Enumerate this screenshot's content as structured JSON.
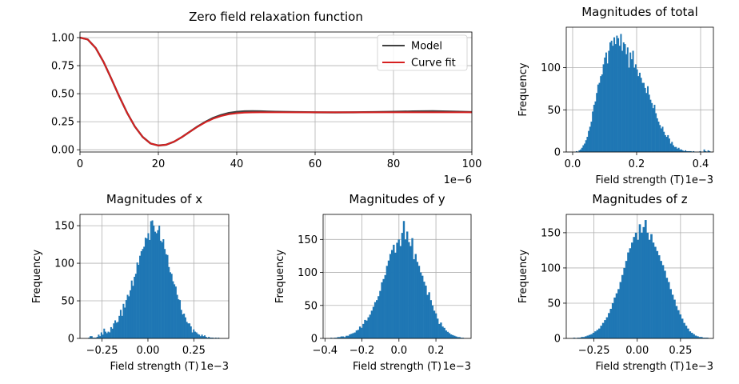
{
  "chart_data": [
    {
      "id": "relax",
      "type": "line",
      "title": "Zero field relaxation function",
      "xlabel": "",
      "ylabel": "",
      "xlim": [
        0,
        100
      ],
      "ylim": [
        -0.02,
        1.05
      ],
      "x_ticks": [
        0,
        20,
        40,
        60,
        80,
        100
      ],
      "x_tick_labels": [
        "0",
        "20",
        "40",
        "60",
        "80",
        "100"
      ],
      "y_ticks": [
        0.0,
        0.25,
        0.5,
        0.75,
        1.0
      ],
      "y_tick_labels": [
        "0.00",
        "0.25",
        "0.50",
        "0.75",
        "1.00"
      ],
      "x_offset_label": "1e−6",
      "grid": true,
      "legend": "top-right",
      "series": [
        {
          "name": "Model",
          "color": "#404040",
          "x": [
            0,
            2,
            4,
            6,
            8,
            10,
            12,
            14,
            16,
            18,
            20,
            22,
            24,
            26,
            28,
            30,
            32,
            34,
            36,
            38,
            40,
            42,
            44,
            46,
            48,
            50,
            55,
            60,
            65,
            70,
            75,
            80,
            85,
            90,
            95,
            100
          ],
          "y": [
            1.0,
            0.983,
            0.908,
            0.784,
            0.634,
            0.477,
            0.331,
            0.207,
            0.114,
            0.056,
            0.038,
            0.045,
            0.072,
            0.113,
            0.16,
            0.207,
            0.249,
            0.284,
            0.31,
            0.328,
            0.338,
            0.343,
            0.344,
            0.343,
            0.341,
            0.339,
            0.336,
            0.334,
            0.333,
            0.334,
            0.336,
            0.339,
            0.342,
            0.344,
            0.341,
            0.336
          ]
        },
        {
          "name": "Curve fit",
          "color": "#d62020",
          "x": [
            0,
            2,
            4,
            6,
            8,
            10,
            12,
            14,
            16,
            18,
            20,
            22,
            24,
            26,
            28,
            30,
            32,
            34,
            36,
            38,
            40,
            42,
            44,
            46,
            48,
            50,
            55,
            60,
            65,
            70,
            75,
            80,
            85,
            90,
            95,
            100
          ],
          "y": [
            1.0,
            0.983,
            0.908,
            0.784,
            0.634,
            0.477,
            0.331,
            0.207,
            0.114,
            0.056,
            0.038,
            0.045,
            0.072,
            0.113,
            0.16,
            0.205,
            0.245,
            0.277,
            0.301,
            0.317,
            0.326,
            0.331,
            0.333,
            0.334,
            0.334,
            0.334,
            0.334,
            0.334,
            0.334,
            0.334,
            0.334,
            0.334,
            0.334,
            0.334,
            0.334,
            0.334
          ]
        }
      ]
    },
    {
      "id": "total",
      "type": "bar",
      "histogram": true,
      "title": "Magnitudes of total",
      "xlabel": "Field strength (T)",
      "ylabel": "Frequency",
      "x_offset_label": "1e−3",
      "xlim": [
        -0.02,
        0.44
      ],
      "ylim": [
        0,
        148
      ],
      "x_ticks": [
        0.0,
        0.2,
        0.4
      ],
      "x_tick_labels": [
        "0.0",
        "0.2",
        "0.4"
      ],
      "y_ticks": [
        0,
        50,
        100
      ],
      "y_tick_labels": [
        "0",
        "50",
        "100"
      ],
      "grid": true,
      "color": "#1f77b4",
      "bin_range": [
        0.01,
        0.43
      ],
      "values": [
        1,
        0,
        2,
        3,
        5,
        8,
        10,
        14,
        18,
        25,
        30,
        36,
        48,
        56,
        60,
        70,
        80,
        82,
        90,
        92,
        104,
        112,
        118,
        105,
        120,
        130,
        132,
        126,
        136,
        128,
        138,
        135,
        126,
        140,
        120,
        130,
        128,
        116,
        124,
        100,
        118,
        110,
        120,
        100,
        104,
        98,
        90,
        94,
        88,
        82,
        82,
        76,
        70,
        78,
        68,
        62,
        58,
        52,
        56,
        46,
        40,
        36,
        32,
        28,
        30,
        24,
        20,
        18,
        20,
        16,
        10,
        12,
        8,
        6,
        6,
        4,
        5,
        3,
        3,
        2,
        1,
        2,
        1,
        1,
        1,
        1,
        0,
        1,
        0,
        0,
        0,
        0,
        1,
        0,
        0,
        3,
        1,
        0,
        2,
        1
      ]
    },
    {
      "id": "x",
      "type": "bar",
      "histogram": true,
      "title": "Magnitudes of x",
      "xlabel": "Field strength (T)",
      "ylabel": "Frequency",
      "x_offset_label": "1e−3",
      "xlim": [
        -0.37,
        0.44
      ],
      "ylim": [
        0,
        165
      ],
      "x_ticks": [
        -0.25,
        0.0,
        0.25
      ],
      "x_tick_labels": [
        "−0.25",
        "0.00",
        "0.25"
      ],
      "y_ticks": [
        0,
        50,
        100,
        150
      ],
      "y_tick_labels": [
        "0",
        "50",
        "100",
        "150"
      ],
      "grid": true,
      "color": "#1f77b4",
      "bin_range": [
        -0.34,
        0.41
      ],
      "values": [
        0,
        0,
        1,
        3,
        3,
        1,
        1,
        1,
        2,
        5,
        3,
        8,
        5,
        13,
        9,
        7,
        9,
        8,
        15,
        13,
        20,
        24,
        21,
        22,
        30,
        38,
        30,
        46,
        41,
        51,
        58,
        56,
        64,
        77,
        70,
        82,
        86,
        101,
        98,
        110,
        116,
        119,
        122,
        134,
        133,
        140,
        131,
        156,
        157,
        150,
        142,
        140,
        144,
        150,
        130,
        128,
        132,
        119,
        112,
        111,
        95,
        88,
        86,
        76,
        72,
        69,
        58,
        52,
        51,
        38,
        32,
        33,
        28,
        22,
        20,
        20,
        16,
        8,
        12,
        9,
        8,
        6,
        5,
        3,
        5,
        3,
        4,
        2,
        1,
        2,
        1,
        1,
        1,
        0,
        1,
        0,
        1,
        0,
        0,
        0
      ]
    },
    {
      "id": "y",
      "type": "bar",
      "histogram": true,
      "title": "Magnitudes of y",
      "xlabel": "Field strength (T)",
      "ylabel": "Frequency",
      "x_offset_label": "1e−3",
      "xlim": [
        -0.41,
        0.39
      ],
      "ylim": [
        0,
        188
      ],
      "x_ticks": [
        -0.4,
        -0.2,
        0.0,
        0.2
      ],
      "x_tick_labels": [
        "−0.4",
        "−0.2",
        "0.0",
        "0.2"
      ],
      "y_ticks": [
        0,
        50,
        100,
        150
      ],
      "y_tick_labels": [
        "0",
        "50",
        "100",
        "150"
      ],
      "grid": true,
      "color": "#1f77b4",
      "bin_range": [
        -0.38,
        0.35
      ],
      "values": [
        0,
        1,
        0,
        1,
        1,
        2,
        2,
        3,
        3,
        2,
        4,
        4,
        6,
        7,
        8,
        9,
        12,
        13,
        18,
        16,
        22,
        28,
        27,
        32,
        36,
        42,
        48,
        55,
        58,
        64,
        72,
        85,
        90,
        96,
        110,
        118,
        128,
        134,
        142,
        130,
        145,
        150,
        140,
        160,
        178,
        150,
        162,
        146,
        140,
        152,
        120,
        128,
        116,
        110,
        100,
        95,
        86,
        80,
        66,
        70,
        58,
        50,
        42,
        38,
        30,
        22,
        24,
        18,
        16,
        12,
        10,
        8,
        6,
        5,
        4,
        3,
        2,
        2,
        1,
        1
      ]
    },
    {
      "id": "z",
      "type": "bar",
      "histogram": true,
      "title": "Magnitudes of z",
      "xlabel": "Field strength (T)",
      "ylabel": "Frequency",
      "x_offset_label": "1e−3",
      "xlim": [
        -0.41,
        0.44
      ],
      "ylim": [
        0,
        176
      ],
      "x_ticks": [
        -0.25,
        0.0,
        0.25
      ],
      "x_tick_labels": [
        "−0.25",
        "0.00",
        "0.25"
      ],
      "y_ticks": [
        0,
        50,
        100,
        150
      ],
      "y_tick_labels": [
        "0",
        "50",
        "100",
        "150"
      ],
      "grid": true,
      "color": "#1f77b4",
      "bin_range": [
        -0.37,
        0.41
      ],
      "values": [
        1,
        0,
        1,
        1,
        2,
        2,
        3,
        4,
        5,
        6,
        8,
        10,
        12,
        14,
        18,
        22,
        26,
        30,
        36,
        42,
        50,
        58,
        64,
        70,
        80,
        90,
        100,
        110,
        122,
        128,
        136,
        144,
        150,
        140,
        162,
        150,
        158,
        168,
        150,
        140,
        148,
        136,
        130,
        124,
        118,
        110,
        104,
        96,
        86,
        80,
        70,
        62,
        55,
        46,
        40,
        34,
        28,
        22,
        18,
        14,
        10,
        8,
        6,
        4,
        3,
        2,
        2,
        1,
        1,
        1
      ]
    }
  ]
}
